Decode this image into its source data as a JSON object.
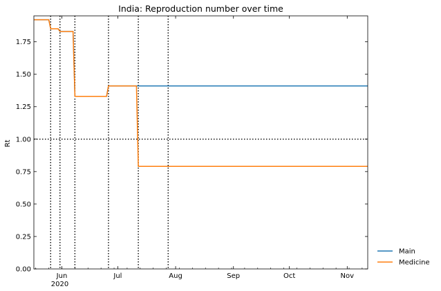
{
  "chart_data": {
    "type": "line",
    "title": "India: Reproduction number over time",
    "xlabel": "",
    "ylabel": "Rt",
    "xlim": [
      "2020-05-17",
      "2020-11-12"
    ],
    "ylim": [
      0,
      1.95
    ],
    "x_ticks": [
      {
        "date": "2020-06-01",
        "label": "Jun",
        "sublabel": "2020"
      },
      {
        "date": "2020-07-01",
        "label": "Jul",
        "sublabel": ""
      },
      {
        "date": "2020-08-01",
        "label": "Aug",
        "sublabel": ""
      },
      {
        "date": "2020-09-01",
        "label": "Sep",
        "sublabel": ""
      },
      {
        "date": "2020-10-01",
        "label": "Oct",
        "sublabel": ""
      },
      {
        "date": "2020-11-01",
        "label": "Nov",
        "sublabel": ""
      }
    ],
    "y_ticks": [
      {
        "value": 0,
        "label": "0.00"
      },
      {
        "value": 0.25,
        "label": "0.25"
      },
      {
        "value": 0.5,
        "label": "0.50"
      },
      {
        "value": 0.75,
        "label": "0.75"
      },
      {
        "value": 1.0,
        "label": "1.00"
      },
      {
        "value": 1.25,
        "label": "1.25"
      },
      {
        "value": 1.5,
        "label": "1.50"
      },
      {
        "value": 1.75,
        "label": "1.75"
      }
    ],
    "reference_line_y": 1.0,
    "phase_change_dates": [
      "2020-05-26",
      "2020-05-31",
      "2020-06-08",
      "2020-06-26",
      "2020-07-12",
      "2020-07-28"
    ],
    "legend_placement": "bottom-right, outside the plot",
    "grid": false,
    "series": [
      {
        "name": "Main",
        "color": "#1f77b4",
        "x": [
          "2020-05-17",
          "2020-05-25",
          "2020-05-26",
          "2020-05-30",
          "2020-05-31",
          "2020-06-07",
          "2020-06-08",
          "2020-06-25",
          "2020-06-26",
          "2020-11-12"
        ],
        "y": [
          1.92,
          1.92,
          1.85,
          1.85,
          1.83,
          1.83,
          1.33,
          1.33,
          1.41,
          1.41
        ]
      },
      {
        "name": "Medicine",
        "color": "#ff7f0e",
        "x": [
          "2020-05-17",
          "2020-05-25",
          "2020-05-26",
          "2020-05-30",
          "2020-05-31",
          "2020-06-07",
          "2020-06-08",
          "2020-06-25",
          "2020-06-26",
          "2020-07-11",
          "2020-07-12",
          "2020-11-12"
        ],
        "y": [
          1.92,
          1.92,
          1.85,
          1.85,
          1.83,
          1.83,
          1.33,
          1.33,
          1.41,
          1.41,
          0.79,
          0.79
        ]
      }
    ]
  }
}
